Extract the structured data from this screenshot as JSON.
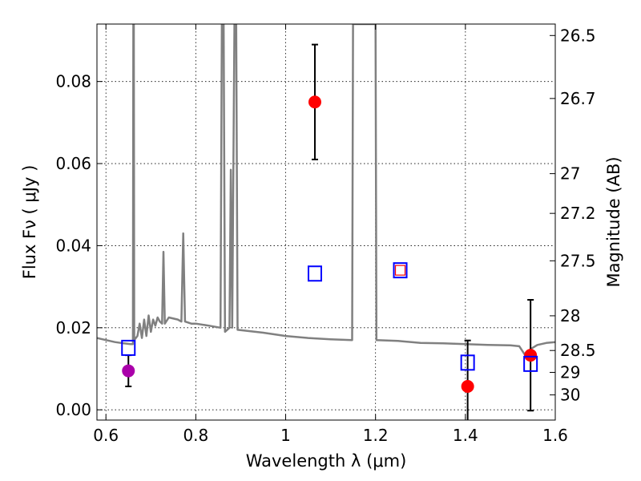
{
  "chart_data": {
    "type": "scatter",
    "title": "",
    "xlabel": "Wavelength  λ (μm)",
    "ylabel": "Flux  Fν  ( μJy )",
    "ylabel_right": "Magnitude (AB)",
    "xlim": [
      0.58,
      1.6
    ],
    "ylim": [
      -0.0025,
      0.094
    ],
    "x_ticks": [
      0.6,
      0.8,
      1.0,
      1.2,
      1.4,
      1.6
    ],
    "x_tick_labels": [
      "0.6",
      "0.8",
      "1",
      "1.2",
      "1.4",
      "1.6"
    ],
    "y_ticks": [
      0.0,
      0.02,
      0.04,
      0.06,
      0.08
    ],
    "y_tick_labels": [
      "0.00",
      "0.02",
      "0.04",
      "0.06",
      "0.08"
    ],
    "mag_ticks": [
      26.5,
      26.7,
      27,
      27.2,
      27.5,
      28,
      28.5,
      29,
      30
    ],
    "mag_tick_labels": [
      "26.5",
      "26.7",
      "27",
      "27.2",
      "27.5",
      "28",
      "28.5",
      "29",
      "30"
    ],
    "grid": true,
    "colors": {
      "model": "#808080",
      "observed": "#ff0000",
      "magenta": "#aa00aa",
      "model_photometry": "#0000ff",
      "errorbar": "#000000"
    },
    "series": [
      {
        "kind": "line",
        "points": [
          [
            0.58,
            0.0175
          ],
          [
            0.6,
            0.017
          ],
          [
            0.62,
            0.0165
          ],
          [
            0.64,
            0.0162
          ],
          [
            0.655,
            0.016
          ],
          [
            0.66,
            0.016
          ],
          [
            0.661,
            0.094
          ],
          [
            0.662,
            0.094
          ],
          [
            0.663,
            0.017
          ],
          [
            0.67,
            0.018
          ],
          [
            0.675,
            0.021
          ],
          [
            0.68,
            0.0175
          ],
          [
            0.685,
            0.022
          ],
          [
            0.69,
            0.018
          ],
          [
            0.695,
            0.023
          ],
          [
            0.7,
            0.019
          ],
          [
            0.705,
            0.022
          ],
          [
            0.71,
            0.0205
          ],
          [
            0.715,
            0.0225
          ],
          [
            0.72,
            0.0215
          ],
          [
            0.725,
            0.021
          ],
          [
            0.728,
            0.0385
          ],
          [
            0.731,
            0.021
          ],
          [
            0.74,
            0.0225
          ],
          [
            0.76,
            0.022
          ],
          [
            0.768,
            0.0215
          ],
          [
            0.772,
            0.043
          ],
          [
            0.776,
            0.0215
          ],
          [
            0.79,
            0.021
          ],
          [
            0.8,
            0.021
          ],
          [
            0.83,
            0.0205
          ],
          [
            0.855,
            0.02
          ],
          [
            0.858,
            0.094
          ],
          [
            0.862,
            0.094
          ],
          [
            0.865,
            0.019
          ],
          [
            0.87,
            0.0195
          ],
          [
            0.875,
            0.02
          ],
          [
            0.878,
            0.0585
          ],
          [
            0.881,
            0.02
          ],
          [
            0.886,
            0.094
          ],
          [
            0.89,
            0.094
          ],
          [
            0.893,
            0.0195
          ],
          [
            0.95,
            0.0188
          ],
          [
            1.0,
            0.018
          ],
          [
            1.05,
            0.0175
          ],
          [
            1.1,
            0.0172
          ],
          [
            1.148,
            0.017
          ],
          [
            1.15,
            0.094
          ],
          [
            1.17,
            0.094
          ],
          [
            1.175,
            0.094
          ],
          [
            1.182,
            0.094
          ],
          [
            1.2,
            0.094
          ],
          [
            1.202,
            0.017
          ],
          [
            1.25,
            0.0168
          ],
          [
            1.3,
            0.0163
          ],
          [
            1.35,
            0.0162
          ],
          [
            1.4,
            0.016
          ],
          [
            1.45,
            0.0158
          ],
          [
            1.5,
            0.0157
          ],
          [
            1.52,
            0.0155
          ],
          [
            1.535,
            0.013
          ],
          [
            1.545,
            0.0148
          ],
          [
            1.56,
            0.0158
          ],
          [
            1.58,
            0.0163
          ],
          [
            1.6,
            0.0165
          ]
        ]
      },
      {
        "kind": "points-with-errors",
        "points": [
          {
            "x": 1.065,
            "y": 0.075,
            "yerr": 0.014
          },
          {
            "x": 1.405,
            "y": 0.0057,
            "yerr": 0.0112
          },
          {
            "x": 1.545,
            "y": 0.0133,
            "yerr": 0.0135
          }
        ]
      },
      {
        "kind": "points-with-errors",
        "points": [
          {
            "x": 0.65,
            "y": 0.0095,
            "yerr": 0.0038
          }
        ]
      },
      {
        "kind": "open-squares",
        "points": [
          {
            "x": 0.65,
            "y": 0.0151
          },
          {
            "x": 1.065,
            "y": 0.0332
          },
          {
            "x": 1.255,
            "y": 0.034
          },
          {
            "x": 1.405,
            "y": 0.0115
          },
          {
            "x": 1.545,
            "y": 0.0112
          }
        ]
      },
      {
        "kind": "open-squares-small",
        "points": [
          {
            "x": 1.255,
            "y": 0.034
          }
        ]
      }
    ]
  }
}
